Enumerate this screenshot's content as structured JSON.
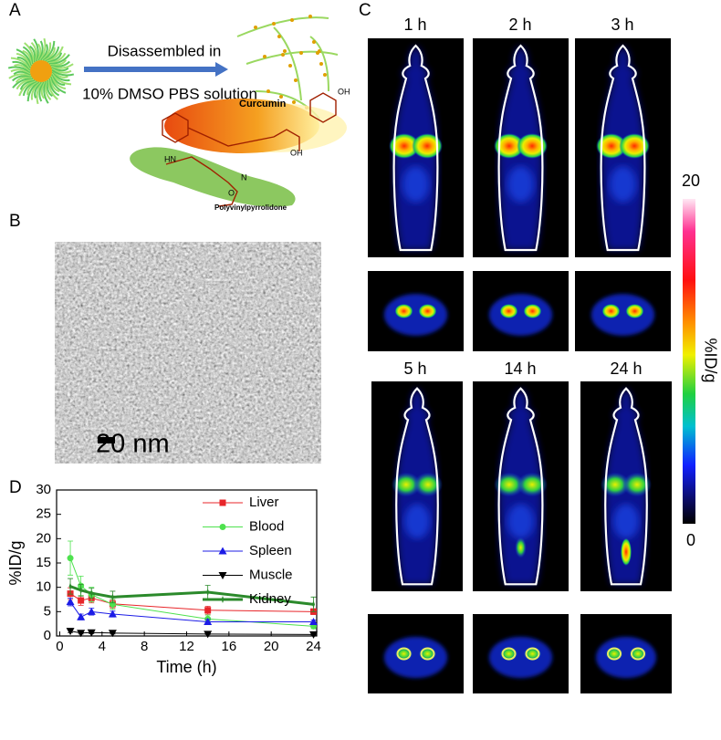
{
  "panel_labels": [
    "A",
    "B",
    "C",
    "D"
  ],
  "scheme": {
    "arrow_top": "Disassembled in",
    "arrow_bottom": "10% DMSO PBS solution",
    "curcumin": "Curcumin",
    "polymer": "Polyvinylpyrrolidone",
    "oh_1": "OH",
    "oh_2": "OH",
    "nh": "HN",
    "n": "N",
    "o": "O"
  },
  "tem": {
    "scale_bar": "20 nm"
  },
  "pet": {
    "time_labels": [
      "1 h",
      "2 h",
      "3 h",
      "5 h",
      "14 h",
      "24 h"
    ],
    "colorbar_max": "20",
    "colorbar_min": "0",
    "colorbar_label": "%ID/g"
  },
  "chart_data": {
    "type": "line",
    "x": [
      1,
      2,
      3,
      5,
      14,
      24
    ],
    "series": [
      {
        "name": "Liver",
        "color": "#e8262a",
        "marker": "square",
        "values": [
          8.7,
          7.3,
          7.8,
          6.6,
          5.3,
          5.0
        ],
        "errors": [
          1.2,
          1.0,
          1.0,
          0.8,
          0.8,
          0.6
        ]
      },
      {
        "name": "Blood",
        "color": "#4ee24e",
        "marker": "circle",
        "values": [
          16,
          10.3,
          8.5,
          6.5,
          3.5,
          2.0
        ],
        "errors": [
          3.5,
          2.0,
          1.5,
          1.0,
          0.8,
          0.5
        ]
      },
      {
        "name": "Spleen",
        "color": "#1c1ce6",
        "marker": "triangle-up",
        "values": [
          7.0,
          3.9,
          5.0,
          4.5,
          2.9,
          2.9
        ],
        "errors": [
          0.8,
          0.6,
          0.7,
          0.6,
          0.5,
          0.4
        ]
      },
      {
        "name": "Muscle",
        "color": "#000000",
        "marker": "triangle-down",
        "values": [
          1.0,
          0.6,
          0.7,
          0.6,
          0.4,
          0.3
        ],
        "errors": [
          0.3,
          0.2,
          0.2,
          0.2,
          0.1,
          0.1
        ]
      },
      {
        "name": "Kidney",
        "color": "#2b8a2b",
        "marker": "star",
        "values": [
          10.2,
          9.4,
          8.8,
          8.0,
          9.0,
          6.5
        ],
        "errors": [
          1.6,
          1.2,
          1.0,
          1.2,
          1.4,
          1.5
        ]
      }
    ],
    "xlabel": "Time (h)",
    "ylabel": "%ID/g",
    "xlim": [
      -0.3,
      24.3
    ],
    "ylim": [
      0,
      30
    ],
    "xticks": [
      0,
      4,
      8,
      12,
      16,
      20,
      24
    ],
    "yticks": [
      0,
      5,
      10,
      15,
      20,
      25,
      30
    ],
    "legend": "upper right"
  }
}
